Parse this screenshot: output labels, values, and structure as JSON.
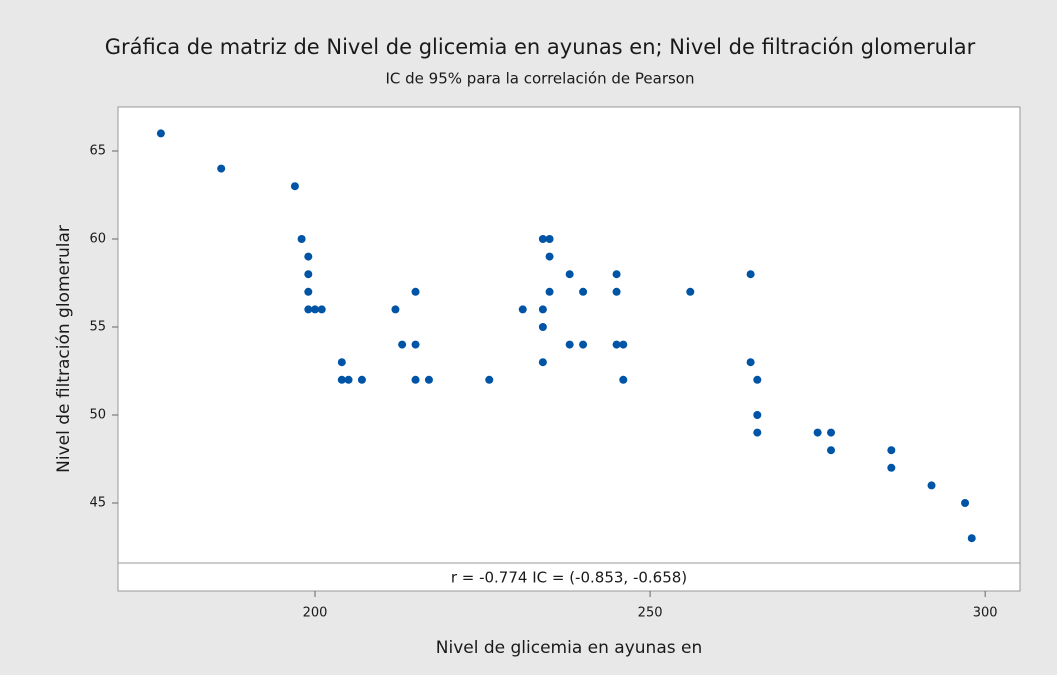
{
  "chart_data": {
    "type": "scatter",
    "title": "Gráfica de matriz de Nivel de glicemia en ayunas en; Nivel de filtración glomerular",
    "subtitle": "IC de 95% para la correlación de Pearson",
    "x_label": "Nivel de glicemia en ayunas en",
    "y_label": "Nivel de filtración glomerular",
    "annotation": "r = -0.774  IC = (-0.853, -0.658)",
    "color": "#0054a6",
    "xlim": [
      170.6,
      305.2
    ],
    "ylim": [
      40,
      67.5
    ],
    "xticks": [
      200,
      250,
      300
    ],
    "yticks": [
      45,
      50,
      55,
      60,
      65
    ],
    "x": [
      177,
      186,
      197,
      198,
      199,
      199,
      199,
      199,
      200,
      201,
      204,
      204,
      205,
      207,
      212,
      213,
      215,
      215,
      215,
      217,
      226,
      231,
      234,
      235,
      234,
      234,
      234,
      235,
      235,
      238,
      238,
      240,
      240,
      245,
      245,
      245,
      246,
      246,
      256,
      265,
      265,
      266,
      266,
      266,
      275,
      277,
      277,
      286,
      286,
      292,
      297,
      298
    ],
    "y": [
      66,
      64,
      63,
      60,
      59,
      58,
      57,
      56,
      56,
      56,
      53,
      52,
      52,
      52,
      56,
      54,
      57,
      54,
      52,
      52,
      52,
      56,
      60,
      60,
      56,
      55,
      53,
      59,
      57,
      58,
      54,
      57,
      54,
      58,
      57,
      54,
      54,
      52,
      57,
      58,
      53,
      52,
      50,
      49,
      49,
      49,
      48,
      48,
      47,
      46,
      45,
      43
    ]
  }
}
